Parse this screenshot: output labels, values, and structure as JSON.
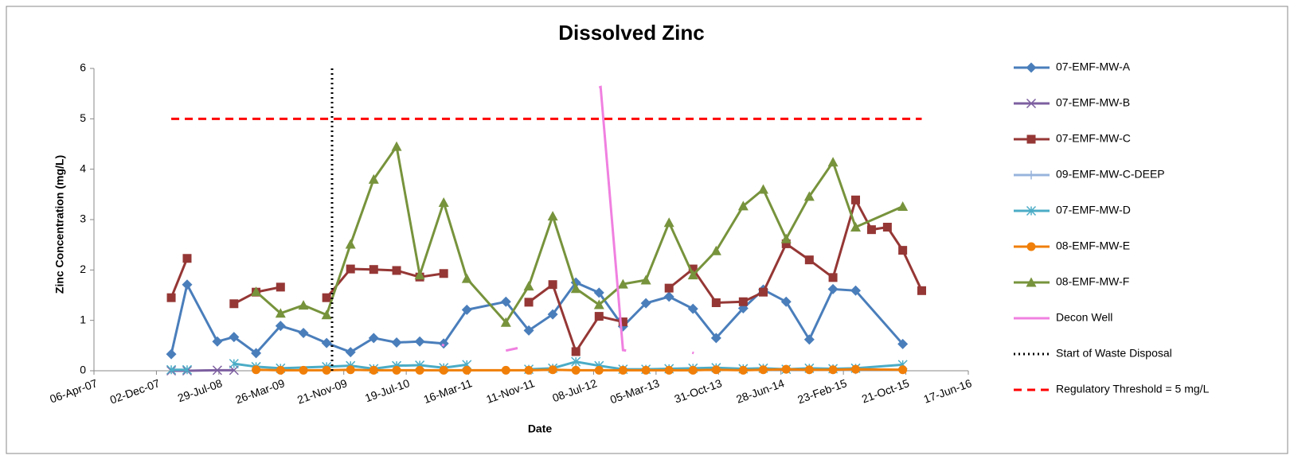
{
  "chart_data": {
    "type": "line",
    "title": "Dissolved Zinc",
    "x_label": "Date",
    "y_label": "Zinc Concentration (mg/L)",
    "xlim": [
      "2007-04-06",
      "2016-06-17"
    ],
    "xticks": [
      {
        "value": "2007-04-06",
        "label": "06-Apr-07"
      },
      {
        "value": "2007-12-02",
        "label": "02-Dec-07"
      },
      {
        "value": "2008-07-29",
        "label": "29-Jul-08"
      },
      {
        "value": "2009-03-26",
        "label": "26-Mar-09"
      },
      {
        "value": "2009-11-21",
        "label": "21-Nov-09"
      },
      {
        "value": "2010-07-19",
        "label": "19-Jul-10"
      },
      {
        "value": "2011-03-16",
        "label": "16-Mar-11"
      },
      {
        "value": "2011-11-11",
        "label": "11-Nov-11"
      },
      {
        "value": "2012-07-08",
        "label": "08-Jul-12"
      },
      {
        "value": "2013-03-05",
        "label": "05-Mar-13"
      },
      {
        "value": "2013-10-31",
        "label": "31-Oct-13"
      },
      {
        "value": "2014-06-28",
        "label": "28-Jun-14"
      },
      {
        "value": "2015-02-23",
        "label": "23-Feb-15"
      },
      {
        "value": "2015-10-21",
        "label": "21-Oct-15"
      },
      {
        "value": "2016-06-17",
        "label": "17-Jun-16"
      }
    ],
    "ylim": [
      0,
      6
    ],
    "yticks": [
      0,
      1,
      2,
      3,
      4,
      5,
      6
    ],
    "grid": false,
    "legend": "right",
    "series": [
      {
        "name": "07-EMF-MW-A",
        "color": "#4a7ebb",
        "marker": "diamond",
        "x": [
          "2008-01-28",
          "2008-03-29",
          "2008-07-23",
          "2008-09-25",
          "2008-12-19",
          "2009-03-23",
          "2009-06-19",
          "2009-09-16",
          "2009-12-17",
          "2010-03-16",
          "2010-06-12",
          "2010-09-09",
          "2010-12-10",
          "2011-03-09",
          "2011-08-06",
          "2011-11-02",
          "2012-02-02",
          "2012-05-01",
          "2012-07-29",
          "2012-10-29",
          "2013-01-25",
          "2013-04-24",
          "2013-07-25",
          "2013-10-22",
          "2014-02-03",
          "2014-04-21",
          "2014-07-18",
          "2014-10-15",
          "2015-01-14",
          "2015-04-11",
          "2015-10-09"
        ],
        "values": [
          0.33,
          1.71,
          0.58,
          0.67,
          0.35,
          0.89,
          0.75,
          0.55,
          0.37,
          0.65,
          0.56,
          0.58,
          0.54,
          1.21,
          1.37,
          0.8,
          1.12,
          1.75,
          1.55,
          0.88,
          1.34,
          1.47,
          1.23,
          0.65,
          1.24,
          1.61,
          1.37,
          0.62,
          1.62,
          1.59,
          0.53
        ]
      },
      {
        "name": "07-EMF-MW-B",
        "color": "#7d5fa0",
        "marker": "x",
        "x": [
          "2008-01-28",
          "2008-03-29",
          "2008-07-23",
          "2008-09-25"
        ],
        "values": [
          0,
          0,
          0.01,
          0.01
        ]
      },
      {
        "name": "07-EMF-MW-C",
        "color": "#953735",
        "marker": "square",
        "x": [
          "2008-01-28",
          "2008-03-29",
          "2008-07-23",
          "2008-09-25",
          "2008-12-19",
          "2009-03-23",
          "2009-06-19",
          "2009-09-16",
          "2009-12-17",
          "2010-03-16",
          "2010-06-12",
          "2010-09-09",
          "2010-12-10",
          "2011-08-06",
          "2011-11-02",
          "2012-02-02",
          "2012-05-01",
          "2012-07-29",
          "2012-10-29",
          "2013-01-25",
          "2013-04-24",
          "2013-07-25",
          "2013-10-22",
          "2014-02-03",
          "2014-04-21",
          "2014-07-18",
          "2014-10-15",
          "2015-01-14",
          "2015-04-11",
          "2015-06-11",
          "2015-08-11",
          "2015-10-09",
          "2015-12-21"
        ],
        "values": [
          1.45,
          2.23,
          null,
          1.33,
          1.56,
          1.66,
          null,
          1.45,
          2.02,
          2.01,
          1.99,
          1.86,
          1.93,
          null,
          1.36,
          1.71,
          0.38,
          1.08,
          0.97,
          null,
          1.64,
          2.02,
          1.35,
          1.37,
          1.56,
          2.52,
          2.2,
          1.85,
          3.39,
          2.8,
          2.85,
          2.39,
          1.59
        ]
      },
      {
        "name": "09-EMF-MW-C-DEEP",
        "color": "#98b4dc",
        "marker": "plus",
        "x": [
          "2014-10-15",
          "2015-01-14",
          "2015-04-11"
        ],
        "values": [
          0.02,
          0.02,
          0.02
        ]
      },
      {
        "name": "07-EMF-MW-D",
        "color": "#4bacc6",
        "marker": "asterisk",
        "x": [
          "2008-01-28",
          "2008-03-29",
          "2008-07-23",
          "2008-09-25",
          "2008-12-19",
          "2009-03-23",
          "2009-09-16",
          "2009-12-17",
          "2010-03-16",
          "2010-06-12",
          "2010-09-09",
          "2010-12-10",
          "2011-03-09",
          "2011-08-06",
          "2011-11-02",
          "2012-02-02",
          "2012-05-01",
          "2012-07-29",
          "2012-10-29",
          "2013-01-25",
          "2013-04-24",
          "2013-07-25",
          "2013-10-22",
          "2014-02-03",
          "2014-04-21",
          "2014-07-18",
          "2014-10-15",
          "2015-01-14",
          "2015-04-11",
          "2015-10-09"
        ],
        "values": [
          0.02,
          0.02,
          null,
          0.14,
          0.08,
          0.05,
          0.08,
          0.1,
          0.04,
          0.1,
          0.11,
          0.06,
          0.12,
          null,
          0.03,
          0.05,
          0.18,
          0.1,
          0.03,
          0.03,
          0.04,
          0.05,
          0.06,
          0.04,
          0.05,
          0.03,
          0.05,
          0.04,
          0.05,
          0.12
        ]
      },
      {
        "name": "08-EMF-MW-E",
        "color": "#f07f09",
        "marker": "circle",
        "x": [
          "2008-12-19",
          "2009-03-23",
          "2009-06-19",
          "2009-09-16",
          "2009-12-17",
          "2010-03-16",
          "2010-06-12",
          "2010-09-09",
          "2010-12-10",
          "2011-03-09",
          "2011-08-06",
          "2011-11-02",
          "2012-02-02",
          "2012-05-01",
          "2012-07-29",
          "2012-10-29",
          "2013-01-25",
          "2013-04-24",
          "2013-07-25",
          "2013-10-22",
          "2014-02-03",
          "2014-04-21",
          "2014-07-18",
          "2014-10-15",
          "2015-01-14",
          "2015-04-11",
          "2015-10-09"
        ],
        "values": [
          0.02,
          0.01,
          0.01,
          0.01,
          0.02,
          0.01,
          0.01,
          0.01,
          0.01,
          0.01,
          0.01,
          0.01,
          0.02,
          0.01,
          0.01,
          0.01,
          0.01,
          0.01,
          0.01,
          0.02,
          0.01,
          0.02,
          0.03,
          0.02,
          0.02,
          0.03,
          0.02
        ]
      },
      {
        "name": "08-EMF-MW-F",
        "color": "#77933c",
        "marker": "triangle",
        "x": [
          "2008-12-19",
          "2009-03-23",
          "2009-06-19",
          "2009-09-16",
          "2009-12-17",
          "2010-03-16",
          "2010-06-12",
          "2010-09-09",
          "2010-12-10",
          "2011-03-09",
          "2011-08-06",
          "2011-11-02",
          "2012-02-02",
          "2012-05-01",
          "2012-07-29",
          "2012-10-29",
          "2013-01-25",
          "2013-04-24",
          "2013-07-25",
          "2013-10-22",
          "2014-02-03",
          "2014-04-21",
          "2014-07-18",
          "2014-10-15",
          "2015-01-14",
          "2015-04-11",
          "2015-10-09"
        ],
        "values": [
          1.57,
          1.14,
          1.3,
          1.11,
          2.51,
          3.8,
          4.45,
          1.9,
          3.34,
          1.83,
          0.96,
          1.68,
          3.07,
          1.63,
          1.31,
          1.72,
          1.8,
          2.94,
          1.9,
          2.38,
          3.27,
          3.6,
          2.62,
          3.46,
          4.14,
          2.85,
          3.26
        ]
      },
      {
        "name": "Decon Well",
        "color": "#f080e0",
        "x": [
          "2010-12-03",
          "2010-12-12",
          "2011-03-01",
          "2011-08-06",
          "2011-09-20",
          "2012-01-01",
          "2012-07-29",
          "2012-08-04",
          "2012-10-29",
          "2012-11-10",
          "2013-04-01",
          "2013-07-22",
          "2013-07-28"
        ],
        "values": [
          0.52,
          0.5,
          null,
          0.4,
          0.45,
          null,
          5.62,
          5.63,
          0.41,
          0.4,
          null,
          0.36,
          0.35
        ]
      },
      {
        "name": "Start of Waste Disposal",
        "color": "#000000",
        "dash": "dot",
        "x": [
          "2009-10-07",
          "2009-10-07"
        ],
        "values": [
          0,
          6
        ]
      },
      {
        "name": "Regulatory Threshold = 5 mg/L",
        "color": "#ff0000",
        "dash": "dash",
        "x": [
          "2008-01-28",
          "2015-12-21"
        ],
        "values": [
          5,
          5
        ]
      }
    ]
  }
}
